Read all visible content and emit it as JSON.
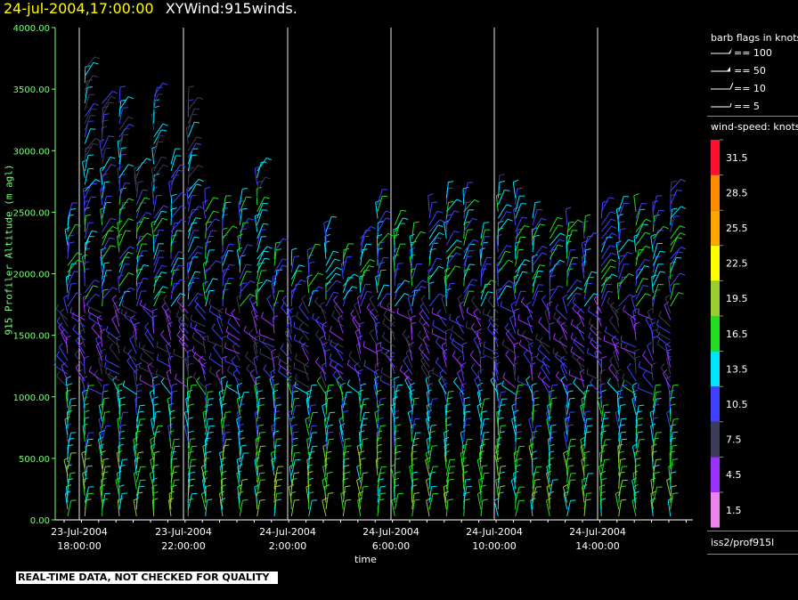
{
  "header": {
    "timestamp": "24-jul-2004,17:00:00",
    "dataset": "XYWind:915winds."
  },
  "footer": {
    "quality_notice": "REAL-TIME DATA, NOT CHECKED FOR QUALITY"
  },
  "legend": {
    "barb_title": "barb flags in knots",
    "barb_flags": [
      "== 100",
      "== 50",
      "== 10",
      "== 5"
    ],
    "speed_title": "wind-speed: knots",
    "station": "iss2/prof915l",
    "colors": [
      "#ee82ee",
      "#9b30ff",
      "#3c3c5a",
      "#4040ff",
      "#00e5ff",
      "#22dd22",
      "#9acd32",
      "#ffff00",
      "#ffa500",
      "#ff8c00",
      "#ff1030"
    ]
  },
  "chart_data": {
    "type": "wind-barb time-height",
    "title": "",
    "xlabel": "time",
    "ylabel": "915 Profiler Altitude (m agl)",
    "ylim": [
      0,
      4000
    ],
    "yticks": [
      "0.00",
      "500.00",
      "1000.00",
      "1500.00",
      "2000.00",
      "2500.00",
      "3000.00",
      "3500.00",
      "4000.00"
    ],
    "xticks": [
      {
        "date": "23-Jul-2004",
        "time": "18:00:00"
      },
      {
        "date": "23-Jul-2004",
        "time": "22:00:00"
      },
      {
        "date": "24-Jul-2004",
        "time": "2:00:00"
      },
      {
        "date": "24-Jul-2004",
        "time": "6:00:00"
      },
      {
        "date": "24-Jul-2004",
        "time": "10:00:00"
      },
      {
        "date": "24-Jul-2004",
        "time": "14:00:00"
      }
    ],
    "speed_scale_knots": [
      "1.5",
      "4.5",
      "7.5",
      "10.5",
      "13.5",
      "16.5",
      "19.5",
      "22.5",
      "25.5",
      "28.5",
      "31.5"
    ],
    "grid": "vertical lines at major time ticks"
  }
}
